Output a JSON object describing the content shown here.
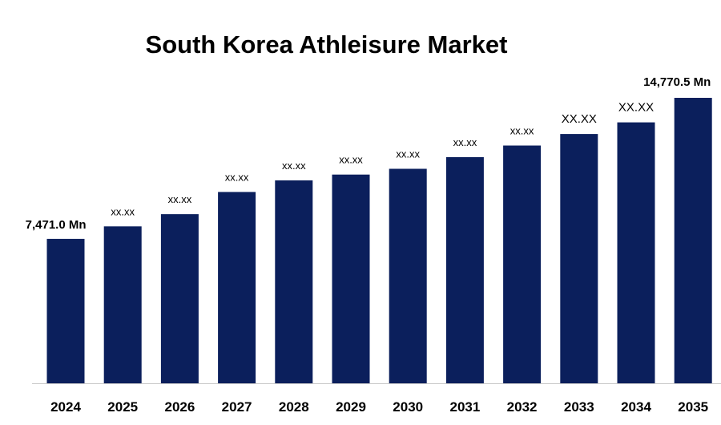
{
  "chart_data": {
    "type": "bar",
    "title": "South Korea Athleisure Market",
    "xlabel": "",
    "ylabel": "",
    "categories": [
      "2024",
      "2025",
      "2026",
      "2027",
      "2028",
      "2029",
      "2030",
      "2031",
      "2032",
      "2033",
      "2034",
      "2035"
    ],
    "values": [
      7471.0,
      8120,
      8750,
      9900,
      10500,
      10800,
      11100,
      11700,
      12300,
      12900,
      13500,
      14770.5
    ],
    "data_labels": [
      "7,471.0 Mn",
      "xx.xx",
      "xx.xx",
      "xx.xx",
      "xx.xx",
      "xx.xx",
      "xx.xx",
      "xx.xx",
      "xx.xx",
      "XX.XX",
      "XX.XX",
      "14,770.5 Mn"
    ],
    "ylim": [
      0,
      15500
    ],
    "bar_color": "#0b1f5c",
    "grid": false,
    "legend": "none"
  }
}
